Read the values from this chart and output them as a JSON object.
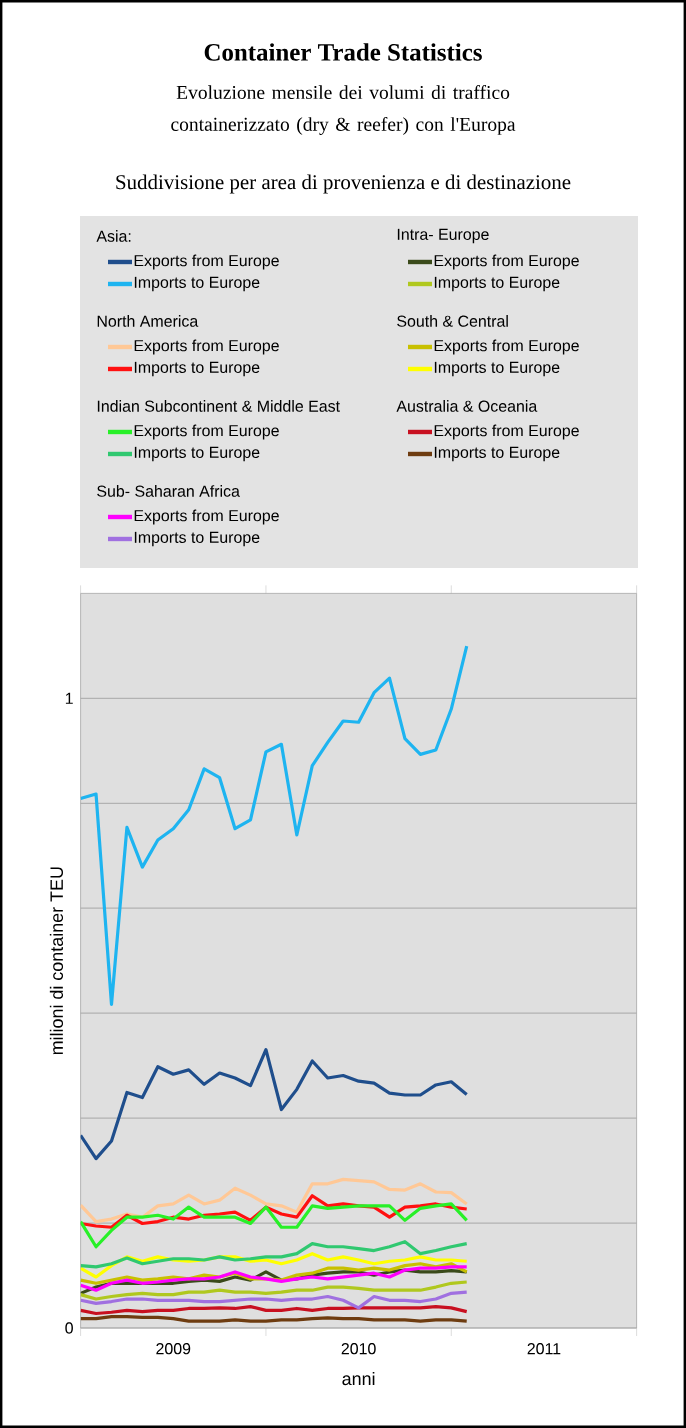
{
  "chart_data": {
    "type": "line",
    "title": "Container Trade Statistics",
    "subtitle": "Evoluzione mensile dei volumi di traffico containerizzato (dry & reefer) con l'Europa",
    "annotations": [
      "Suddivisione per area di provenienza e di destinazione",
      "Asia:",
      "Intra- Europe",
      "North America",
      "South & Central",
      "Indian Subcontinent & Middle East",
      "Australia & Oceania",
      "Sub- Saharan Africa"
    ],
    "xlabel": "anni",
    "ylabel": "milioni di container TEU",
    "legend": "top",
    "grid": "y",
    "xlim": [
      "2009-01",
      "2012-01"
    ],
    "xticks": [
      {
        "value": "2009-01",
        "label": null
      },
      {
        "value": "2009-07",
        "label": "2009"
      },
      {
        "value": "2010-01",
        "label": null
      },
      {
        "value": "2010-07",
        "label": "2010"
      },
      {
        "value": "2011-01",
        "label": null
      },
      {
        "value": "2011-07",
        "label": "2011"
      },
      {
        "value": "2012-01",
        "label": null
      }
    ],
    "ylim": [
      0,
      1.1667
    ],
    "yticks": [
      0,
      {
        "value": 0.1667,
        "label": null
      },
      {
        "value": 0.3333,
        "label": null
      },
      {
        "value": 0.5,
        "label": null
      },
      {
        "value": 0.6667,
        "label": null
      },
      {
        "value": 0.8333,
        "label": null
      },
      1
    ],
    "x": [
      "2009-01",
      "2009-02",
      "2009-03",
      "2009-04",
      "2009-05",
      "2009-06",
      "2009-07",
      "2009-08",
      "2009-09",
      "2009-10",
      "2009-11",
      "2009-12",
      "2010-01",
      "2010-02",
      "2010-03",
      "2010-04",
      "2010-05",
      "2010-06",
      "2010-07",
      "2010-08",
      "2010-09",
      "2010-10",
      "2010-11",
      "2010-12",
      "2011-01",
      "2011-02"
    ],
    "series": [
      {
        "name": "Exports from Europe",
        "color": "#1f4e8c",
        "values": [
          0.306,
          0.269,
          0.297,
          0.374,
          0.366,
          0.415,
          0.403,
          0.41,
          0.387,
          0.405,
          0.397,
          0.385,
          0.442,
          0.347,
          0.379,
          0.424,
          0.397,
          0.401,
          0.392,
          0.389,
          0.373,
          0.37,
          0.37,
          0.386,
          0.391,
          0.371
        ]
      },
      {
        "name": "Imports to Europe",
        "color": "#1eb4f0",
        "values": [
          0.841,
          0.848,
          0.514,
          0.795,
          0.732,
          0.775,
          0.793,
          0.823,
          0.888,
          0.874,
          0.793,
          0.807,
          0.915,
          0.927,
          0.783,
          0.893,
          0.93,
          0.964,
          0.962,
          1.009,
          1.032,
          0.936,
          0.911,
          0.918,
          0.983,
          1.083
        ]
      },
      {
        "name": "Exports from Europe",
        "color": "#3a4a1a",
        "values": [
          0.055,
          0.065,
          0.071,
          0.071,
          0.071,
          0.071,
          0.071,
          0.074,
          0.076,
          0.074,
          0.081,
          0.076,
          0.089,
          0.076,
          0.078,
          0.084,
          0.087,
          0.089,
          0.089,
          0.084,
          0.089,
          0.092,
          0.089,
          0.089,
          0.091,
          0.089
        ]
      },
      {
        "name": "Imports to Europe",
        "color": "#b0c81e",
        "values": [
          0.053,
          0.046,
          0.05,
          0.053,
          0.055,
          0.053,
          0.053,
          0.057,
          0.057,
          0.06,
          0.057,
          0.057,
          0.055,
          0.057,
          0.06,
          0.06,
          0.065,
          0.065,
          0.063,
          0.06,
          0.06,
          0.06,
          0.06,
          0.065,
          0.071,
          0.073
        ]
      },
      {
        "name": "Exports from Europe",
        "color": "#ffc896",
        "values": [
          0.195,
          0.169,
          0.173,
          0.181,
          0.176,
          0.194,
          0.197,
          0.211,
          0.197,
          0.203,
          0.222,
          0.211,
          0.197,
          0.194,
          0.184,
          0.229,
          0.229,
          0.236,
          0.234,
          0.232,
          0.22,
          0.219,
          0.229,
          0.216,
          0.215,
          0.197
        ]
      },
      {
        "name": "Imports to Europe",
        "color": "#ff1010",
        "values": [
          0.166,
          0.162,
          0.16,
          0.179,
          0.166,
          0.169,
          0.176,
          0.173,
          0.179,
          0.181,
          0.184,
          0.171,
          0.192,
          0.181,
          0.176,
          0.21,
          0.194,
          0.197,
          0.194,
          0.192,
          0.176,
          0.192,
          0.194,
          0.197,
          0.192,
          0.189
        ]
      },
      {
        "name": "Exports from Europe",
        "color": "#c8c000",
        "values": [
          0.076,
          0.071,
          0.076,
          0.081,
          0.076,
          0.078,
          0.081,
          0.078,
          0.084,
          0.081,
          0.087,
          0.078,
          0.078,
          0.076,
          0.084,
          0.087,
          0.095,
          0.095,
          0.092,
          0.095,
          0.092,
          0.099,
          0.102,
          0.097,
          0.102,
          0.089
        ]
      },
      {
        "name": "Imports to Europe",
        "color": "#ffff00",
        "values": [
          0.095,
          0.081,
          0.099,
          0.113,
          0.106,
          0.113,
          0.108,
          0.106,
          0.108,
          0.113,
          0.113,
          0.106,
          0.108,
          0.102,
          0.108,
          0.118,
          0.108,
          0.113,
          0.108,
          0.102,
          0.106,
          0.108,
          0.113,
          0.108,
          0.108,
          0.106
        ]
      },
      {
        "name": "Exports from Europe",
        "color": "#28f028",
        "values": [
          0.169,
          0.129,
          0.155,
          0.176,
          0.176,
          0.179,
          0.173,
          0.192,
          0.176,
          0.176,
          0.176,
          0.166,
          0.192,
          0.16,
          0.16,
          0.194,
          0.19,
          0.192,
          0.194,
          0.194,
          0.194,
          0.171,
          0.19,
          0.194,
          0.197,
          0.171
        ]
      },
      {
        "name": "Imports to Europe",
        "color": "#30c870",
        "values": [
          0.099,
          0.097,
          0.102,
          0.111,
          0.102,
          0.106,
          0.11,
          0.11,
          0.108,
          0.113,
          0.108,
          0.11,
          0.113,
          0.113,
          0.118,
          0.134,
          0.129,
          0.129,
          0.126,
          0.123,
          0.129,
          0.137,
          0.118,
          0.123,
          0.129,
          0.134
        ]
      },
      {
        "name": "Exports from Europe",
        "color": "#c81020",
        "values": [
          0.028,
          0.023,
          0.025,
          0.028,
          0.026,
          0.028,
          0.028,
          0.031,
          0.031,
          0.032,
          0.031,
          0.034,
          0.028,
          0.028,
          0.031,
          0.028,
          0.031,
          0.031,
          0.032,
          0.032,
          0.032,
          0.032,
          0.032,
          0.034,
          0.032,
          0.026
        ]
      },
      {
        "name": "Imports to Europe",
        "color": "#6e3c10",
        "values": [
          0.015,
          0.015,
          0.018,
          0.018,
          0.017,
          0.017,
          0.015,
          0.011,
          0.011,
          0.011,
          0.013,
          0.011,
          0.011,
          0.013,
          0.013,
          0.015,
          0.016,
          0.015,
          0.015,
          0.013,
          0.013,
          0.013,
          0.011,
          0.013,
          0.013,
          0.011
        ]
      },
      {
        "name": "Exports from Europe",
        "color": "#ff00ff",
        "values": [
          0.068,
          0.06,
          0.071,
          0.076,
          0.071,
          0.073,
          0.076,
          0.078,
          0.078,
          0.081,
          0.089,
          0.081,
          0.078,
          0.074,
          0.078,
          0.081,
          0.078,
          0.081,
          0.084,
          0.087,
          0.081,
          0.092,
          0.095,
          0.095,
          0.097,
          0.097
        ]
      },
      {
        "name": "Imports to Europe",
        "color": "#a070e0",
        "values": [
          0.044,
          0.039,
          0.042,
          0.046,
          0.046,
          0.044,
          0.044,
          0.044,
          0.042,
          0.042,
          0.044,
          0.046,
          0.046,
          0.044,
          0.046,
          0.046,
          0.05,
          0.044,
          0.032,
          0.05,
          0.044,
          0.044,
          0.042,
          0.046,
          0.055,
          0.057
        ]
      }
    ]
  }
}
